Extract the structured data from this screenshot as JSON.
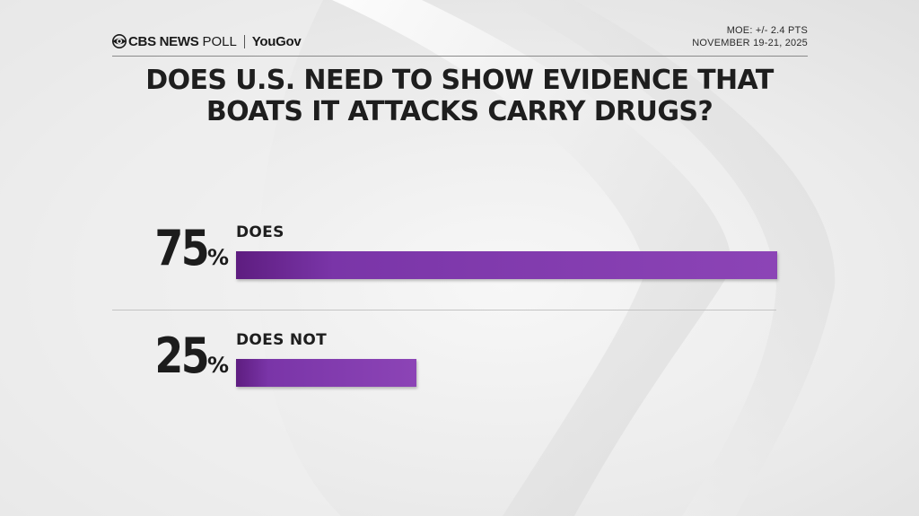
{
  "header": {
    "network": "CBS NEWS",
    "poll_word": "POLL",
    "partner": "YouGov",
    "moe": "MOE: +/- 2.4 PTS",
    "dates": "NOVEMBER 19-21, 2025"
  },
  "title_lines": [
    "DOES U.S. NEED TO SHOW EVIDENCE THAT",
    "BOATS IT ATTACKS CARRY DRUGS?"
  ],
  "colors": {
    "bar": "#8c44b6",
    "bar_dark": "#5e1d80",
    "text": "#1e1e1e"
  },
  "chart_data": {
    "type": "bar",
    "orientation": "horizontal",
    "categories": [
      "DOES",
      "DOES NOT"
    ],
    "values": [
      75,
      25
    ],
    "value_labels": [
      "75",
      "25"
    ],
    "unit": "%",
    "title": "DOES U.S. NEED TO SHOW EVIDENCE THAT BOATS IT ATTACKS CARRY DRUGS?",
    "xlim": [
      0,
      75
    ],
    "grid": false,
    "legend": "none"
  }
}
